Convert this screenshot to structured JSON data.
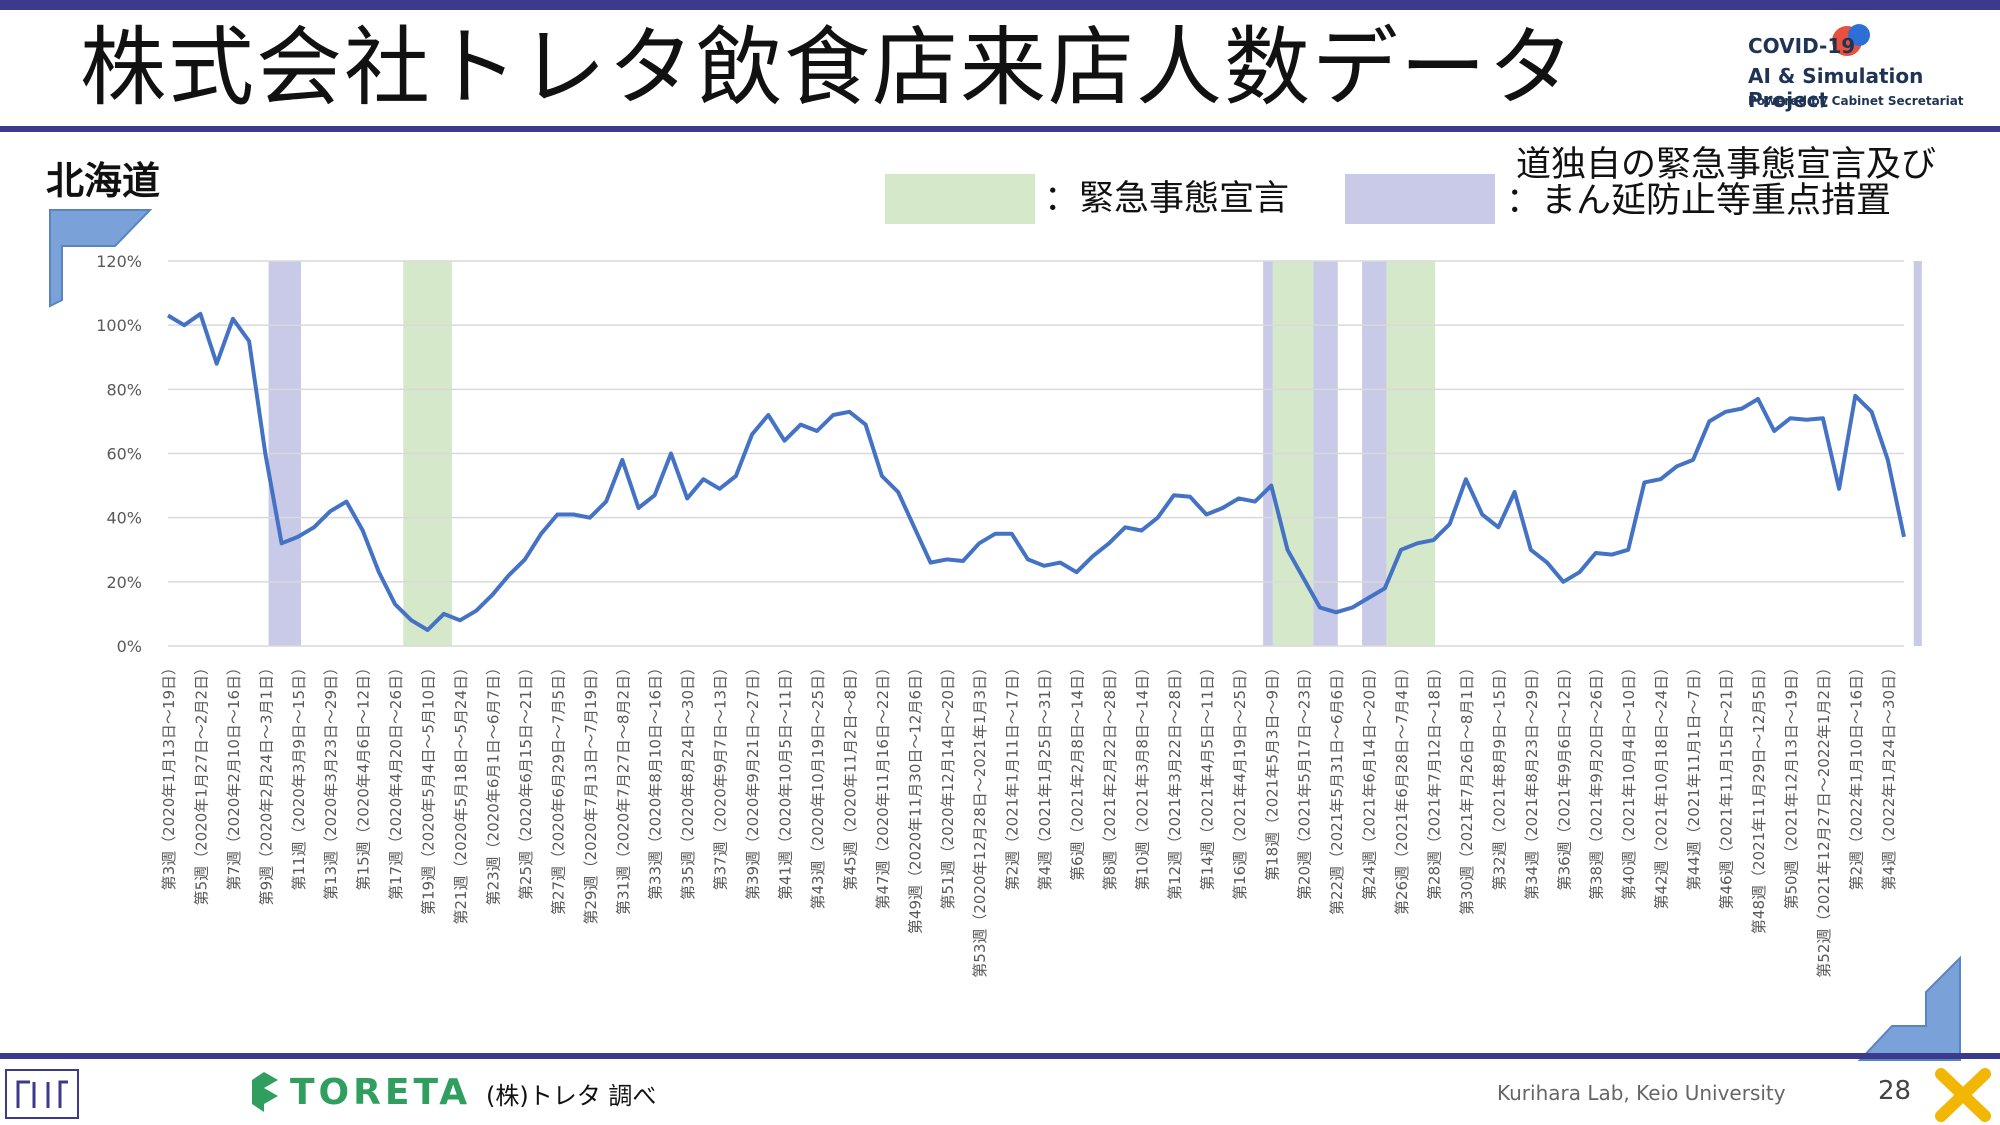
{
  "header": {
    "title": "株式会社トレタ飲食店来店人数データ",
    "project_logo": {
      "line1": "COVID-19",
      "line2": "AI & Simulation Project",
      "line3": "Powered by Cabinet Secretariat"
    }
  },
  "region": "北海道",
  "legend": {
    "emergency": {
      "label": "：緊急事態宣言",
      "color": "#d5e8c9"
    },
    "priority": {
      "line1": "道独自の緊急事態宣言及び",
      "line2": "：まん延防止等重点措置",
      "color": "#c9c9e8"
    }
  },
  "footer": {
    "brand": "TORETA",
    "source": "(株)トレタ 調べ",
    "lab": "Kurihara Lab, Keio University",
    "page": "28"
  },
  "colors": {
    "line": "#4472c4",
    "accent": "#3b3a8c",
    "grid": "#d9d9d9"
  },
  "chart_data": {
    "type": "line",
    "ylim": [
      0,
      120
    ],
    "yticks": [
      "0%",
      "20%",
      "40%",
      "60%",
      "80%",
      "100%",
      "120%"
    ],
    "x_labels": [
      "第3週（2020年1月13日～19日）",
      "第5週（2020年1月27日～2月2日）",
      "第7週（2020年2月10日～16日）",
      "第9週（2020年2月24日～3月1日）",
      "第11週（2020年3月9日～15日）",
      "第13週（2020年3月23日～29日）",
      "第15週（2020年4月6日～12日）",
      "第17週（2020年4月20日～26日）",
      "第19週（2020年5月4日～5月10日）",
      "第21週（2020年5月18日～5月24日）",
      "第23週（2020年6月1日～6月7日）",
      "第25週（2020年6月15日～21日）",
      "第27週（2020年6月29日～7月5日）",
      "第29週（2020年7月13日～7月19日）",
      "第31週（2020年7月27日～8月2日）",
      "第33週（2020年8月10日～16日）",
      "第35週（2020年8月24日～30日）",
      "第37週（2020年9月7日～13日）",
      "第39週（2020年9月21日～27日）",
      "第41週（2020年10月5日～11日）",
      "第43週（2020年10月19日～25日）",
      "第45週（2020年11月2日～8日）",
      "第47週（2020年11月16日～22日）",
      "第49週（2020年11月30日～12月6日）",
      "第51週（2020年12月14日～20日）",
      "第53週（2020年12月28日～2021年1月3日）",
      "第2週（2021年1月11日～17日）",
      "第4週（2021年1月25日～31日）",
      "第6週（2021年2月8日～14日）",
      "第8週（2021年2月22日～28日）",
      "第10週（2021年3月8日～14日）",
      "第12週（2021年3月22日～28日）",
      "第14週（2021年4月5日～11日）",
      "第16週（2021年4月19日～25日）",
      "第18週（2021年5月3日～9日）",
      "第20週（2021年5月17日～23日）",
      "第22週（2021年5月31日～6月6日）",
      "第24週（2021年6月14日～20日）",
      "第26週（2021年6月28日～7月4日）",
      "第28週（2021年7月12日～18日）",
      "第30週（2021年7月26日～8月1日）",
      "第32週（2021年8月9日～15日）",
      "第34週（2021年8月23日～29日）",
      "第36週（2021年9月6日～12日）",
      "第38週（2021年9月20日～26日）",
      "第40週（2021年10月4日～10日）",
      "第42週（2021年10月18日～24日）",
      "第44週（2021年11月1日～7日）",
      "第46週（2021年11月15日～21日）",
      "第48週（2021年11月29日～12月5日）",
      "第50週（2021年12月13日～19日）",
      "第52週（2021年12月27日～2022年1月2日）",
      "第2週（2022年1月10日～16日）",
      "第4週（2022年1月24日～30日）"
    ],
    "series": [
      {
        "values": [
          103,
          100,
          103.5,
          88,
          102,
          95,
          60,
          32,
          34,
          37,
          42,
          45,
          36,
          23,
          13,
          8,
          5,
          10,
          8,
          11,
          16,
          22,
          27,
          35,
          41,
          41,
          40,
          45,
          58,
          43,
          47,
          60,
          46,
          52,
          49,
          53,
          66,
          72,
          64,
          69,
          67,
          72,
          73,
          69,
          53,
          48,
          37,
          26,
          27,
          26.5,
          32,
          35,
          35,
          27,
          25,
          26,
          23,
          28,
          32,
          37,
          36,
          40,
          47,
          46.5,
          41,
          43,
          46,
          45,
          50,
          30,
          21,
          12,
          10.5,
          12,
          15,
          18,
          30,
          32,
          33,
          38,
          52,
          41,
          37,
          48,
          30,
          26,
          20,
          23,
          29,
          28.5,
          30,
          51,
          52,
          56,
          58,
          70,
          73,
          74,
          77,
          67,
          71,
          70.5,
          71,
          49,
          78,
          73,
          58,
          34
        ]
      }
    ],
    "shaded_periods": [
      {
        "type": "priority",
        "from": 6.2,
        "to": 8.2
      },
      {
        "type": "emergency",
        "from": 14.5,
        "to": 17.5
      },
      {
        "type": "priority",
        "from": 67.5,
        "to": 68.1
      },
      {
        "type": "emergency",
        "from": 68.1,
        "to": 70.6
      },
      {
        "type": "priority",
        "from": 70.6,
        "to": 72.1
      },
      {
        "type": "priority",
        "from": 73.6,
        "to": 75.1
      },
      {
        "type": "emergency",
        "from": 75.1,
        "to": 78.1
      },
      {
        "type": "priority",
        "from": 107.6,
        "to": 108.1
      }
    ]
  }
}
